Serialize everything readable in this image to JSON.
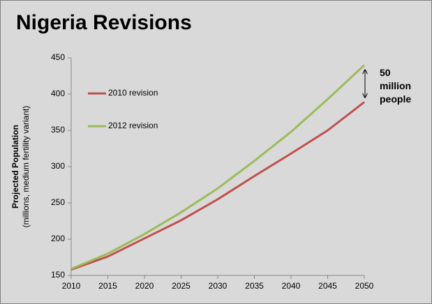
{
  "chart_data": {
    "type": "line",
    "title": "Nigeria Revisions",
    "ylabel": "Projected Population",
    "ylabel_sub": "(millions, medium fertility variant)",
    "x": [
      2010,
      2015,
      2020,
      2025,
      2030,
      2035,
      2040,
      2045,
      2050
    ],
    "series": [
      {
        "name": "2010 revision",
        "color": "#c0504d",
        "values": [
          158,
          176,
          201,
          226,
          255,
          287,
          318,
          350,
          389
        ]
      },
      {
        "name": "2012 revision",
        "color": "#9bbb59",
        "values": [
          159,
          180,
          207,
          237,
          270,
          308,
          348,
          393,
          440
        ]
      }
    ],
    "xlim": [
      2010,
      2050
    ],
    "xticks": [
      2010,
      2015,
      2020,
      2025,
      2030,
      2035,
      2040,
      2045,
      2050
    ],
    "ylim": [
      150,
      450
    ],
    "yticks": [
      150,
      200,
      250,
      300,
      350,
      400,
      450
    ],
    "annotation": "50 million people"
  }
}
